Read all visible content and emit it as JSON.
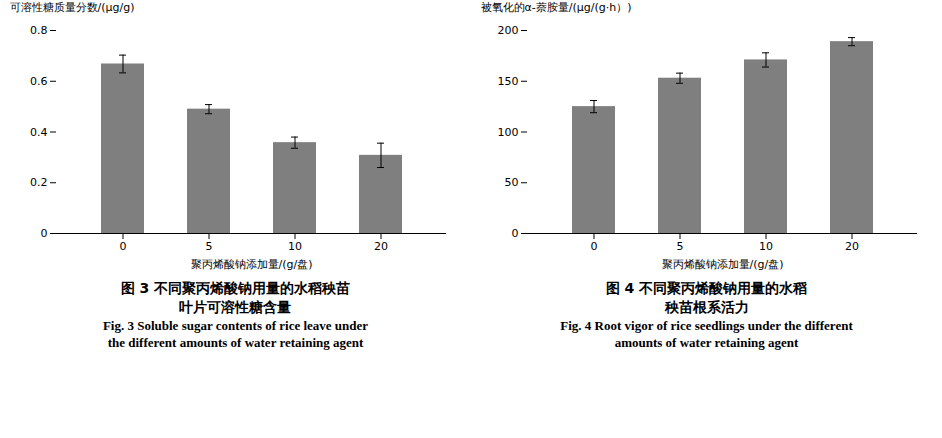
{
  "chart_data": [
    {
      "type": "bar",
      "categories": [
        "0",
        "5",
        "10",
        "20"
      ],
      "values": [
        0.668,
        0.49,
        0.358,
        0.308
      ],
      "errors": [
        0.035,
        0.018,
        0.022,
        0.048
      ],
      "color": "#7f7f7f",
      "ylabel": "可溶性糖质量分数/(μg/g)",
      "xlabel": "聚丙烯酸钠添加量/(g/盘)",
      "ylim": [
        0,
        0.8
      ],
      "yticks": [
        0,
        0.2,
        0.4,
        0.6,
        0.8
      ],
      "caption": [
        "图 3  不同聚丙烯酸钠用量的水稻秧苗",
        "叶片可溶性糖含量",
        "Fig.  3    Soluble sugar contents of rice leave under",
        "the different amounts of water retaining agent"
      ]
    },
    {
      "type": "bar",
      "categories": [
        "0",
        "5",
        "10",
        "20"
      ],
      "values": [
        125,
        153,
        171,
        189
      ],
      "errors": [
        6,
        5,
        7,
        4
      ],
      "color": "#7f7f7f",
      "ylabel": "被氧化的α-萘胺量/(μg/(g·h）)",
      "xlabel": "聚丙烯酸钠添加量/(g/盘)",
      "ylim": [
        0,
        200
      ],
      "yticks": [
        0,
        50,
        100,
        150,
        200
      ],
      "caption": [
        "图 4  不同聚丙烯酸钠用量的水稻",
        "秧苗根系活力",
        "Fig.  4    Root vigor of rice seedlings under the different",
        "amounts of water retaining agent"
      ]
    }
  ]
}
